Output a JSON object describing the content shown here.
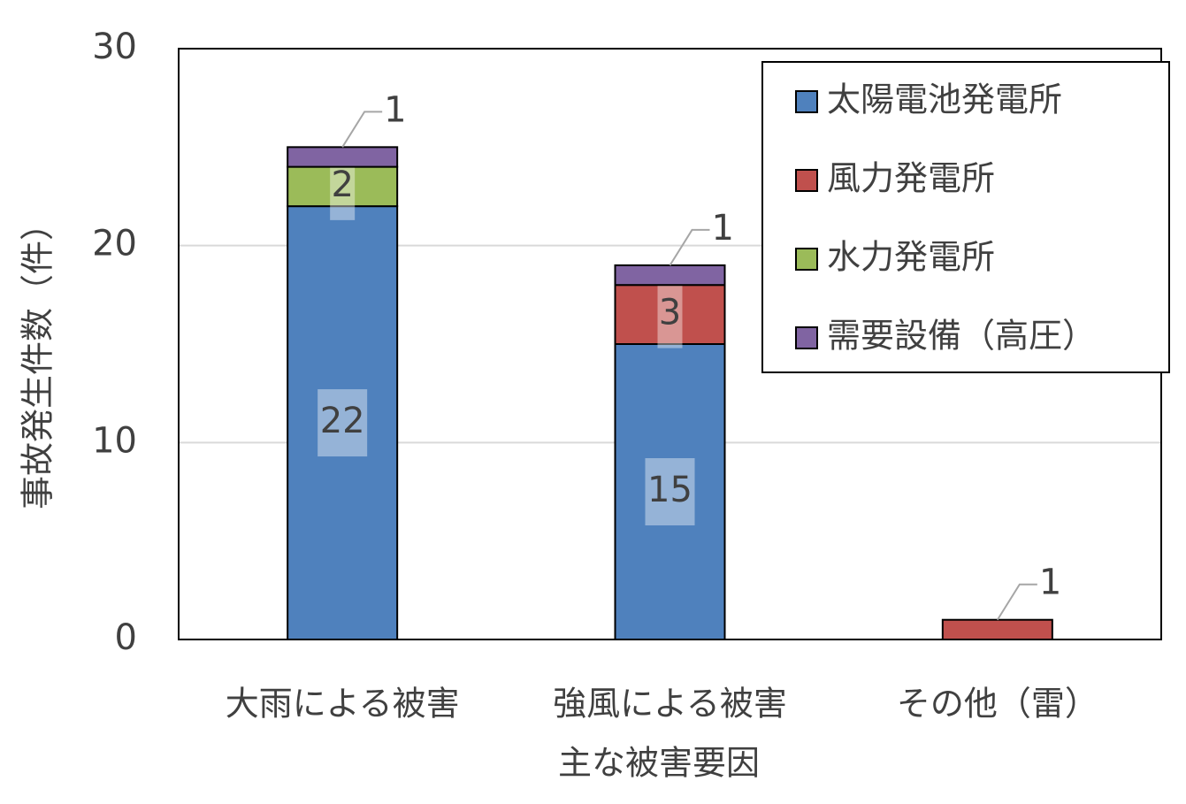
{
  "chart_data": {
    "type": "stacked-bar",
    "x_label": "主な被害要因",
    "y_label": "事故発生件数（件）",
    "categories": [
      "大雨による被害",
      "強風による被害",
      "その他（雷）"
    ],
    "series": [
      {
        "name": "太陽電池発電所",
        "color": "#4f81bd",
        "values": [
          22,
          15,
          0
        ]
      },
      {
        "name": "風力発電所",
        "color": "#c0504d",
        "values": [
          0,
          3,
          1
        ]
      },
      {
        "name": "水力発電所",
        "color": "#9bbb59",
        "values": [
          2,
          0,
          0
        ]
      },
      {
        "name": "需要設備（高圧）",
        "color": "#8064a2",
        "values": [
          1,
          1,
          0
        ]
      }
    ],
    "ylim": [
      0,
      30
    ],
    "yticks": [
      0,
      10,
      20,
      30
    ],
    "grid": true,
    "legend": "upper right"
  }
}
